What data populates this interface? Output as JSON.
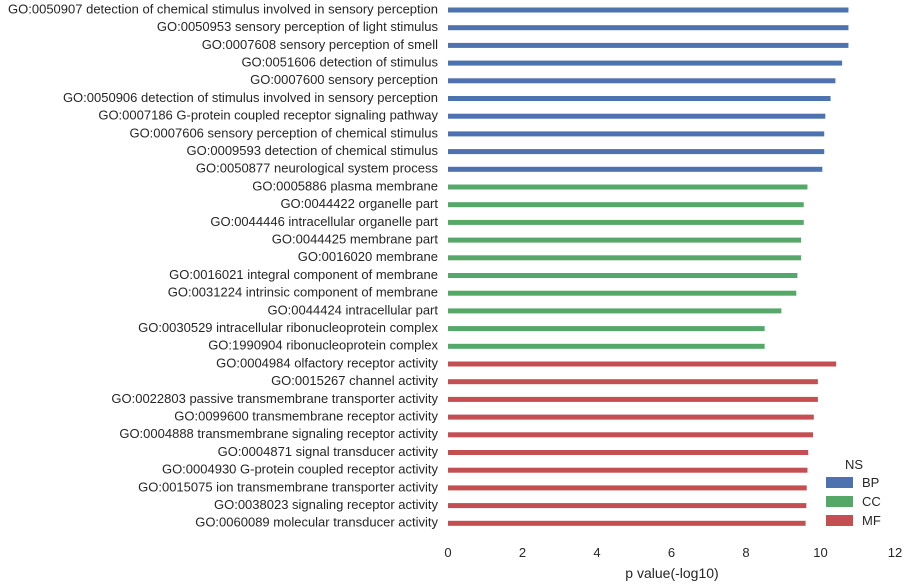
{
  "chart_data": {
    "type": "bar",
    "orientation": "horizontal",
    "xlabel": "p value(-log10)",
    "ylabel": "",
    "xlim": [
      0,
      12
    ],
    "xticks": [
      "0",
      "2",
      "4",
      "6",
      "8",
      "10",
      "12"
    ],
    "grid": false,
    "legend": {
      "title": "NS",
      "placement": "bottom-right",
      "entries": [
        {
          "name": "BP",
          "color": "#4c72b0"
        },
        {
          "name": "CC",
          "color": "#55a868"
        },
        {
          "name": "MF",
          "color": "#c44e52"
        }
      ]
    },
    "categories": [
      "GO:0050907 detection of chemical stimulus involved in sensory perception",
      "GO:0050953 sensory perception of light stimulus",
      "GO:0007608 sensory perception of smell",
      "GO:0051606 detection of stimulus",
      "GO:0007600 sensory perception",
      "GO:0050906 detection of stimulus involved in sensory perception",
      "GO:0007186 G-protein coupled receptor signaling pathway",
      "GO:0007606 sensory perception of chemical stimulus",
      "GO:0009593 detection of chemical stimulus",
      "GO:0050877 neurological system process",
      "GO:0005886 plasma membrane",
      "GO:0044422 organelle part",
      "GO:0044446 intracellular organelle part",
      "GO:0044425 membrane part",
      "GO:0016020 membrane",
      "GO:0016021 integral component of membrane",
      "GO:0031224 intrinsic component of membrane",
      "GO:0044424 intracellular part",
      "GO:0030529 intracellular ribonucleoprotein complex",
      "GO:1990904 ribonucleoprotein complex",
      "GO:0004984 olfactory receptor activity",
      "GO:0015267 channel activity",
      "GO:0022803 passive transmembrane transporter activity",
      "GO:0099600 transmembrane receptor activity",
      "GO:0004888 transmembrane signaling receptor activity",
      "GO:0004871 signal transducer activity",
      "GO:0004930 G-protein coupled receptor activity",
      "GO:0015075 ion transmembrane transporter activity",
      "GO:0038023 signaling receptor activity",
      "GO:0060089 molecular transducer activity"
    ],
    "values": [
      10.75,
      10.75,
      10.75,
      10.58,
      10.4,
      10.27,
      10.13,
      10.1,
      10.1,
      10.05,
      9.65,
      9.55,
      9.55,
      9.48,
      9.48,
      9.38,
      9.35,
      8.95,
      8.5,
      8.5,
      10.42,
      9.93,
      9.93,
      9.82,
      9.8,
      9.67,
      9.65,
      9.63,
      9.62,
      9.6
    ],
    "groups": [
      "BP",
      "BP",
      "BP",
      "BP",
      "BP",
      "BP",
      "BP",
      "BP",
      "BP",
      "BP",
      "CC",
      "CC",
      "CC",
      "CC",
      "CC",
      "CC",
      "CC",
      "CC",
      "CC",
      "CC",
      "MF",
      "MF",
      "MF",
      "MF",
      "MF",
      "MF",
      "MF",
      "MF",
      "MF",
      "MF"
    ]
  }
}
